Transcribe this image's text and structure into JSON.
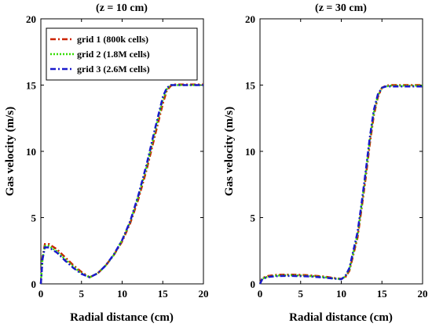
{
  "chart_data": [
    {
      "type": "line",
      "title": "(z = 10 cm)",
      "xlabel": "Radial distance (cm)",
      "ylabel": "Gas velocity (m/s)",
      "xlim": [
        0,
        20
      ],
      "ylim": [
        0,
        20
      ],
      "xticks": [
        "0",
        "5",
        "10",
        "15",
        "20"
      ],
      "yticks": [
        "0",
        "5",
        "10",
        "15",
        "20"
      ],
      "grid": false,
      "legend": "top-left",
      "series": [
        {
          "name": "grid 1 (800k cells)",
          "color": "#cc2200",
          "dash": "dash-dot",
          "x": [
            0,
            0.2,
            0.5,
            1,
            2,
            3,
            4,
            5,
            6,
            7,
            8,
            9,
            10,
            11,
            12,
            13,
            14,
            15,
            15.5,
            16,
            16.5,
            17,
            18,
            19,
            20
          ],
          "y": [
            0,
            2.0,
            3.0,
            3.0,
            2.6,
            2.0,
            1.4,
            0.9,
            0.5,
            0.8,
            1.4,
            2.2,
            3.2,
            4.6,
            6.4,
            8.6,
            11.1,
            13.6,
            14.6,
            14.95,
            15.05,
            15.05,
            15.05,
            15.05,
            15.05
          ]
        },
        {
          "name": "grid 2 (1.8M cells)",
          "color": "#33dd00",
          "dash": "dotted",
          "x": [
            0,
            0.2,
            0.5,
            1,
            2,
            3,
            4,
            5,
            6,
            7,
            8,
            9,
            10,
            11,
            12,
            13,
            14,
            15,
            15.5,
            16,
            16.5,
            17,
            18,
            19,
            20
          ],
          "y": [
            0,
            1.9,
            2.85,
            2.85,
            2.45,
            1.85,
            1.3,
            0.8,
            0.5,
            0.8,
            1.4,
            2.2,
            3.3,
            4.7,
            6.6,
            8.8,
            11.4,
            13.9,
            14.7,
            15.0,
            15.0,
            15.0,
            15.0,
            15.0,
            15.0
          ]
        },
        {
          "name": "grid 3 (2.6M cells)",
          "color": "#1a1acc",
          "dash": "dash-dot",
          "x": [
            0,
            0.2,
            0.5,
            1,
            2,
            3,
            4,
            5,
            6,
            7,
            8,
            9,
            10,
            11,
            12,
            13,
            14,
            15,
            15.5,
            16,
            16.5,
            17,
            18,
            19,
            20
          ],
          "y": [
            0,
            1.85,
            2.75,
            2.75,
            2.35,
            1.75,
            1.2,
            0.75,
            0.5,
            0.8,
            1.4,
            2.25,
            3.3,
            4.75,
            6.7,
            9.0,
            11.6,
            14.1,
            14.8,
            15.0,
            15.0,
            15.0,
            15.0,
            15.0,
            15.0
          ]
        }
      ]
    },
    {
      "type": "line",
      "title": "(z = 30 cm)",
      "xlabel": "Radial distance (cm)",
      "ylabel": "Gas velocity (m/s)",
      "xlim": [
        0,
        20
      ],
      "ylim": [
        0,
        20
      ],
      "xticks": [
        "0",
        "5",
        "10",
        "15",
        "20"
      ],
      "yticks": [
        "0",
        "5",
        "10",
        "15",
        "20"
      ],
      "grid": false,
      "series": [
        {
          "color": "#cc2200",
          "dash": "dash-dot",
          "x": [
            0,
            0.3,
            1,
            2,
            3,
            4,
            5,
            6,
            7,
            8,
            9,
            10,
            10.5,
            11,
            12,
            12.5,
            13,
            13.5,
            14,
            14.5,
            15,
            15.5,
            16,
            17,
            18,
            19,
            20
          ],
          "y": [
            0,
            0.45,
            0.6,
            0.68,
            0.7,
            0.7,
            0.68,
            0.65,
            0.6,
            0.55,
            0.45,
            0.38,
            0.5,
            1.0,
            3.5,
            5.7,
            8.0,
            10.5,
            12.7,
            14.1,
            14.8,
            14.95,
            15.0,
            15.0,
            15.0,
            15.0,
            15.0
          ]
        },
        {
          "color": "#33dd00",
          "dash": "dotted",
          "x": [
            0,
            0.3,
            1,
            2,
            3,
            4,
            5,
            6,
            7,
            8,
            9,
            10,
            10.5,
            11,
            12,
            12.5,
            13,
            13.5,
            14,
            14.5,
            15,
            15.5,
            16,
            17,
            18,
            19,
            20
          ],
          "y": [
            0,
            0.4,
            0.55,
            0.62,
            0.65,
            0.65,
            0.63,
            0.6,
            0.56,
            0.5,
            0.42,
            0.36,
            0.55,
            1.1,
            3.7,
            5.9,
            8.3,
            10.8,
            12.9,
            14.2,
            14.8,
            14.9,
            14.95,
            14.95,
            14.95,
            14.95,
            14.95
          ]
        },
        {
          "color": "#1a1acc",
          "dash": "dash-dot",
          "x": [
            0,
            0.3,
            1,
            2,
            3,
            4,
            5,
            6,
            7,
            8,
            9,
            10,
            10.5,
            11,
            12,
            12.5,
            13,
            13.5,
            14,
            14.5,
            15,
            15.5,
            16,
            17,
            18,
            19,
            20
          ],
          "y": [
            0,
            0.38,
            0.52,
            0.58,
            0.6,
            0.6,
            0.58,
            0.56,
            0.52,
            0.47,
            0.4,
            0.35,
            0.6,
            1.2,
            3.9,
            6.1,
            8.5,
            11.0,
            13.1,
            14.3,
            14.8,
            14.9,
            14.9,
            14.9,
            14.9,
            14.9,
            14.9
          ]
        }
      ]
    }
  ]
}
